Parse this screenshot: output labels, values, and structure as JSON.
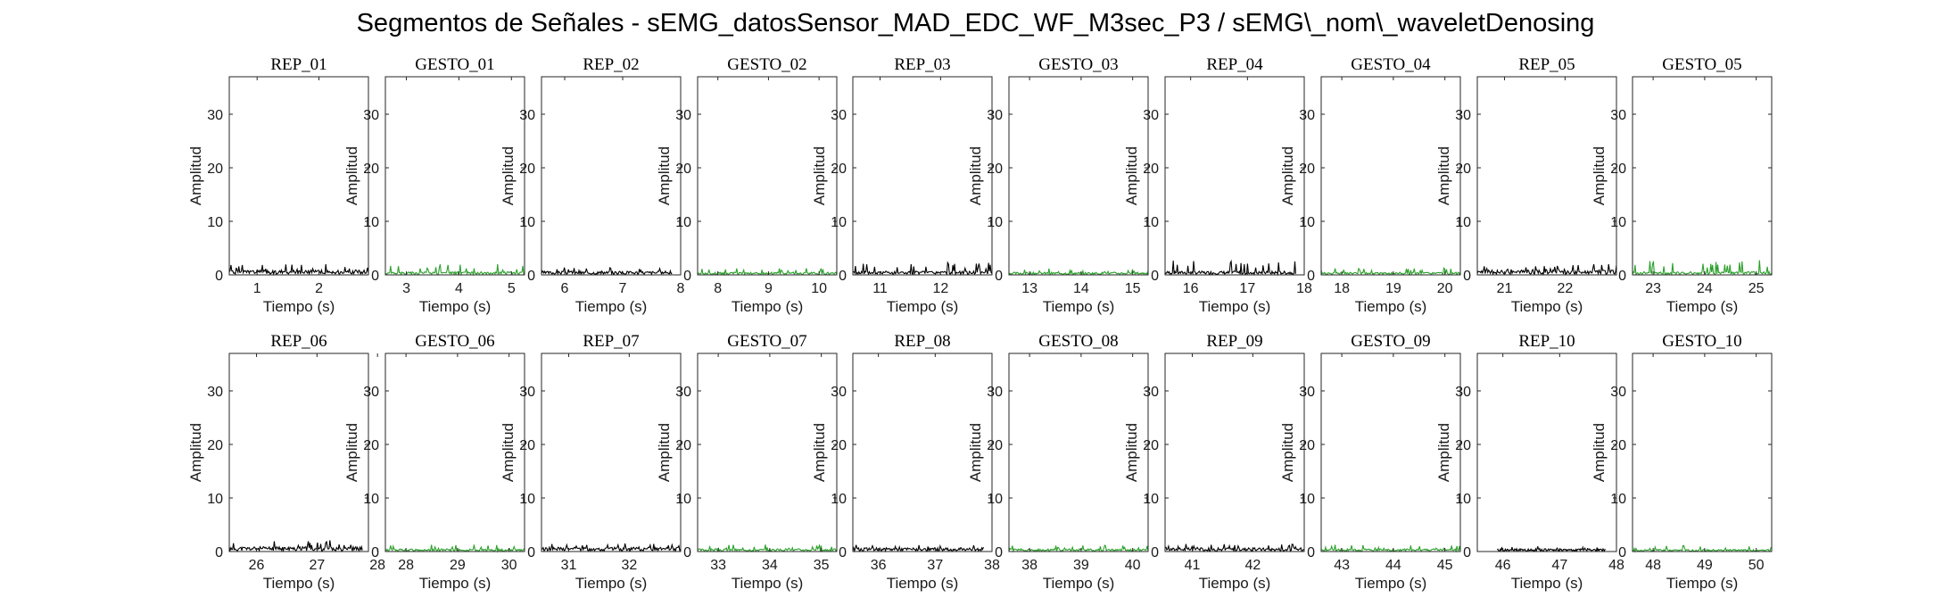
{
  "figure": {
    "title": "Segmentos de Señales - sEMG_datosSensor_MAD_EDC_WF_M3sec_P3 / sEMG\\_nom\\_waveletDenosing"
  },
  "colors": {
    "rep": "#000000",
    "gesto": "#2ca02c",
    "axis": "#262626"
  },
  "chart_data": [
    {
      "type": "line",
      "title": "REP_01",
      "xlabel": "Tiempo (s)",
      "ylabel": "Amplitud",
      "xlim": [
        0.55,
        2.8
      ],
      "ylim": [
        0,
        37
      ],
      "xticks": [
        1,
        2
      ],
      "yticks": [
        0,
        10,
        20,
        30
      ],
      "series": [
        {
          "kind": "rep",
          "x_range": [
            0.55,
            2.8
          ],
          "baseline": 0.9,
          "peak": 2.2,
          "seed": 1
        }
      ]
    },
    {
      "type": "line",
      "title": "GESTO_01",
      "xlabel": "Tiempo (s)",
      "ylabel": "Amplitud",
      "xlim": [
        2.6,
        5.25
      ],
      "ylim": [
        0,
        37
      ],
      "xticks": [
        3,
        4,
        5
      ],
      "yticks": [
        0,
        10,
        20,
        30
      ],
      "series": [
        {
          "kind": "gesto",
          "x_range": [
            2.6,
            5.25
          ],
          "baseline": 0.6,
          "peak": 2.0,
          "seed": 2
        }
      ]
    },
    {
      "type": "line",
      "title": "REP_02",
      "xlabel": "Tiempo (s)",
      "ylabel": "Amplitud",
      "xlim": [
        5.6,
        8.0
      ],
      "ylim": [
        0,
        37
      ],
      "xticks": [
        6,
        7,
        8
      ],
      "yticks": [
        0,
        10,
        20,
        30
      ],
      "series": [
        {
          "kind": "rep",
          "x_range": [
            5.6,
            7.85
          ],
          "baseline": 0.7,
          "peak": 1.4,
          "seed": 3
        }
      ]
    },
    {
      "type": "line",
      "title": "GESTO_02",
      "xlabel": "Tiempo (s)",
      "ylabel": "Amplitud",
      "xlim": [
        7.6,
        10.35
      ],
      "ylim": [
        0,
        37
      ],
      "xticks": [
        8,
        9,
        10
      ],
      "yticks": [
        0,
        10,
        20,
        30
      ],
      "series": [
        {
          "kind": "gesto",
          "x_range": [
            7.6,
            10.35
          ],
          "baseline": 0.5,
          "peak": 1.3,
          "seed": 4
        }
      ]
    },
    {
      "type": "line",
      "title": "REP_03",
      "xlabel": "Tiempo (s)",
      "ylabel": "Amplitud",
      "xlim": [
        10.55,
        12.85
      ],
      "ylim": [
        0,
        37
      ],
      "xticks": [
        11,
        12
      ],
      "yticks": [
        0,
        10,
        20,
        30
      ],
      "series": [
        {
          "kind": "rep",
          "x_range": [
            10.55,
            12.85
          ],
          "baseline": 0.7,
          "peak": 2.4,
          "seed": 5
        }
      ]
    },
    {
      "type": "line",
      "title": "GESTO_03",
      "xlabel": "Tiempo (s)",
      "ylabel": "Amplitud",
      "xlim": [
        12.6,
        15.3
      ],
      "ylim": [
        0,
        37
      ],
      "xticks": [
        13,
        14,
        15
      ],
      "yticks": [
        0,
        10,
        20,
        30
      ],
      "series": [
        {
          "kind": "gesto",
          "x_range": [
            12.6,
            15.3
          ],
          "baseline": 0.5,
          "peak": 1.2,
          "seed": 6
        }
      ]
    },
    {
      "type": "line",
      "title": "REP_04",
      "xlabel": "Tiempo (s)",
      "ylabel": "Amplitud",
      "xlim": [
        15.55,
        18.0
      ],
      "ylim": [
        0,
        37
      ],
      "xticks": [
        16,
        17,
        18
      ],
      "yticks": [
        0,
        10,
        20,
        30
      ],
      "series": [
        {
          "kind": "rep",
          "x_range": [
            15.55,
            17.85
          ],
          "baseline": 0.7,
          "peak": 2.7,
          "seed": 7
        }
      ]
    },
    {
      "type": "line",
      "title": "GESTO_04",
      "xlabel": "Tiempo (s)",
      "ylabel": "Amplitud",
      "xlim": [
        17.6,
        20.3
      ],
      "ylim": [
        0,
        37
      ],
      "xticks": [
        18,
        19,
        20
      ],
      "yticks": [
        0,
        10,
        20,
        30
      ],
      "series": [
        {
          "kind": "gesto",
          "x_range": [
            17.6,
            20.3
          ],
          "baseline": 0.5,
          "peak": 1.3,
          "seed": 8
        }
      ]
    },
    {
      "type": "line",
      "title": "REP_05",
      "xlabel": "Tiempo (s)",
      "ylabel": "Amplitud",
      "xlim": [
        20.55,
        22.85
      ],
      "ylim": [
        0,
        37
      ],
      "xticks": [
        21,
        22
      ],
      "yticks": [
        0,
        10,
        20,
        30
      ],
      "series": [
        {
          "kind": "rep",
          "x_range": [
            20.55,
            22.85
          ],
          "baseline": 0.9,
          "peak": 2.0,
          "seed": 9
        }
      ]
    },
    {
      "type": "line",
      "title": "GESTO_05",
      "xlabel": "Tiempo (s)",
      "ylabel": "Amplitud",
      "xlim": [
        22.6,
        25.3
      ],
      "ylim": [
        0,
        37
      ],
      "xticks": [
        23,
        24,
        25
      ],
      "yticks": [
        0,
        10,
        20,
        30
      ],
      "series": [
        {
          "kind": "gesto",
          "x_range": [
            22.6,
            25.3
          ],
          "baseline": 0.6,
          "peak": 2.9,
          "seed": 10
        }
      ]
    },
    {
      "type": "line",
      "title": "REP_06",
      "xlabel": "Tiempo (s)",
      "ylabel": "Amplitud",
      "xlim": [
        25.55,
        27.85
      ],
      "ylim": [
        0,
        37
      ],
      "xticks": [
        26,
        27,
        28
      ],
      "yticks": [
        0,
        10,
        20,
        30
      ],
      "series": [
        {
          "kind": "rep",
          "x_range": [
            25.55,
            27.75
          ],
          "baseline": 0.9,
          "peak": 2.1,
          "seed": 11
        }
      ]
    },
    {
      "type": "line",
      "title": "GESTO_06",
      "xlabel": "Tiempo (s)",
      "ylabel": "Amplitud",
      "xlim": [
        27.6,
        30.3
      ],
      "ylim": [
        0,
        37
      ],
      "xticks": [
        28,
        29,
        30
      ],
      "yticks": [
        0,
        10,
        20,
        30
      ],
      "series": [
        {
          "kind": "gesto",
          "x_range": [
            27.6,
            30.3
          ],
          "baseline": 0.5,
          "peak": 1.3,
          "seed": 12
        }
      ]
    },
    {
      "type": "line",
      "title": "REP_07",
      "xlabel": "Tiempo (s)",
      "ylabel": "Amplitud",
      "xlim": [
        30.55,
        32.85
      ],
      "ylim": [
        0,
        37
      ],
      "xticks": [
        31,
        32
      ],
      "yticks": [
        0,
        10,
        20,
        30
      ],
      "series": [
        {
          "kind": "rep",
          "x_range": [
            30.55,
            32.85
          ],
          "baseline": 0.8,
          "peak": 1.5,
          "seed": 13
        }
      ]
    },
    {
      "type": "line",
      "title": "GESTO_07",
      "xlabel": "Tiempo (s)",
      "ylabel": "Amplitud",
      "xlim": [
        32.6,
        35.3
      ],
      "ylim": [
        0,
        37
      ],
      "xticks": [
        33,
        34,
        35
      ],
      "yticks": [
        0,
        10,
        20,
        30
      ],
      "series": [
        {
          "kind": "gesto",
          "x_range": [
            32.6,
            35.3
          ],
          "baseline": 0.5,
          "peak": 1.3,
          "seed": 14
        }
      ]
    },
    {
      "type": "line",
      "title": "REP_08",
      "xlabel": "Tiempo (s)",
      "ylabel": "Amplitud",
      "xlim": [
        35.55,
        38.0
      ],
      "ylim": [
        0,
        37
      ],
      "xticks": [
        36,
        37,
        38
      ],
      "yticks": [
        0,
        10,
        20,
        30
      ],
      "series": [
        {
          "kind": "rep",
          "x_range": [
            35.55,
            37.85
          ],
          "baseline": 0.7,
          "peak": 1.3,
          "seed": 15
        }
      ]
    },
    {
      "type": "line",
      "title": "GESTO_08",
      "xlabel": "Tiempo (s)",
      "ylabel": "Amplitud",
      "xlim": [
        37.6,
        40.3
      ],
      "ylim": [
        0,
        37
      ],
      "xticks": [
        38,
        39,
        40
      ],
      "yticks": [
        0,
        10,
        20,
        30
      ],
      "series": [
        {
          "kind": "gesto",
          "x_range": [
            37.6,
            40.3
          ],
          "baseline": 0.5,
          "peak": 1.2,
          "seed": 16
        }
      ]
    },
    {
      "type": "line",
      "title": "REP_09",
      "xlabel": "Tiempo (s)",
      "ylabel": "Amplitud",
      "xlim": [
        40.55,
        42.85
      ],
      "ylim": [
        0,
        37
      ],
      "xticks": [
        41,
        42
      ],
      "yticks": [
        0,
        10,
        20,
        30
      ],
      "series": [
        {
          "kind": "rep",
          "x_range": [
            40.55,
            42.85
          ],
          "baseline": 0.7,
          "peak": 1.5,
          "seed": 17
        }
      ]
    },
    {
      "type": "line",
      "title": "GESTO_09",
      "xlabel": "Tiempo (s)",
      "ylabel": "Amplitud",
      "xlim": [
        42.6,
        45.3
      ],
      "ylim": [
        0,
        37
      ],
      "xticks": [
        43,
        44,
        45
      ],
      "yticks": [
        0,
        10,
        20,
        30
      ],
      "series": [
        {
          "kind": "gesto",
          "x_range": [
            42.6,
            45.3
          ],
          "baseline": 0.5,
          "peak": 1.3,
          "seed": 18
        }
      ]
    },
    {
      "type": "line",
      "title": "REP_10",
      "xlabel": "Tiempo (s)",
      "ylabel": "Amplitud",
      "xlim": [
        45.55,
        48.0
      ],
      "ylim": [
        0,
        37
      ],
      "xticks": [
        46,
        47,
        48
      ],
      "yticks": [
        0,
        10,
        20,
        30
      ],
      "series": [
        {
          "kind": "rep",
          "x_range": [
            45.9,
            47.8
          ],
          "baseline": 0.5,
          "peak": 1.0,
          "seed": 19
        }
      ]
    },
    {
      "type": "line",
      "title": "GESTO_10",
      "xlabel": "Tiempo (s)",
      "ylabel": "Amplitud",
      "xlim": [
        47.6,
        50.3
      ],
      "ylim": [
        0,
        37
      ],
      "xticks": [
        48,
        49,
        50
      ],
      "yticks": [
        0,
        10,
        20,
        30
      ],
      "series": [
        {
          "kind": "gesto",
          "x_range": [
            47.6,
            50.3
          ],
          "baseline": 0.4,
          "peak": 1.1,
          "seed": 20
        }
      ]
    }
  ]
}
